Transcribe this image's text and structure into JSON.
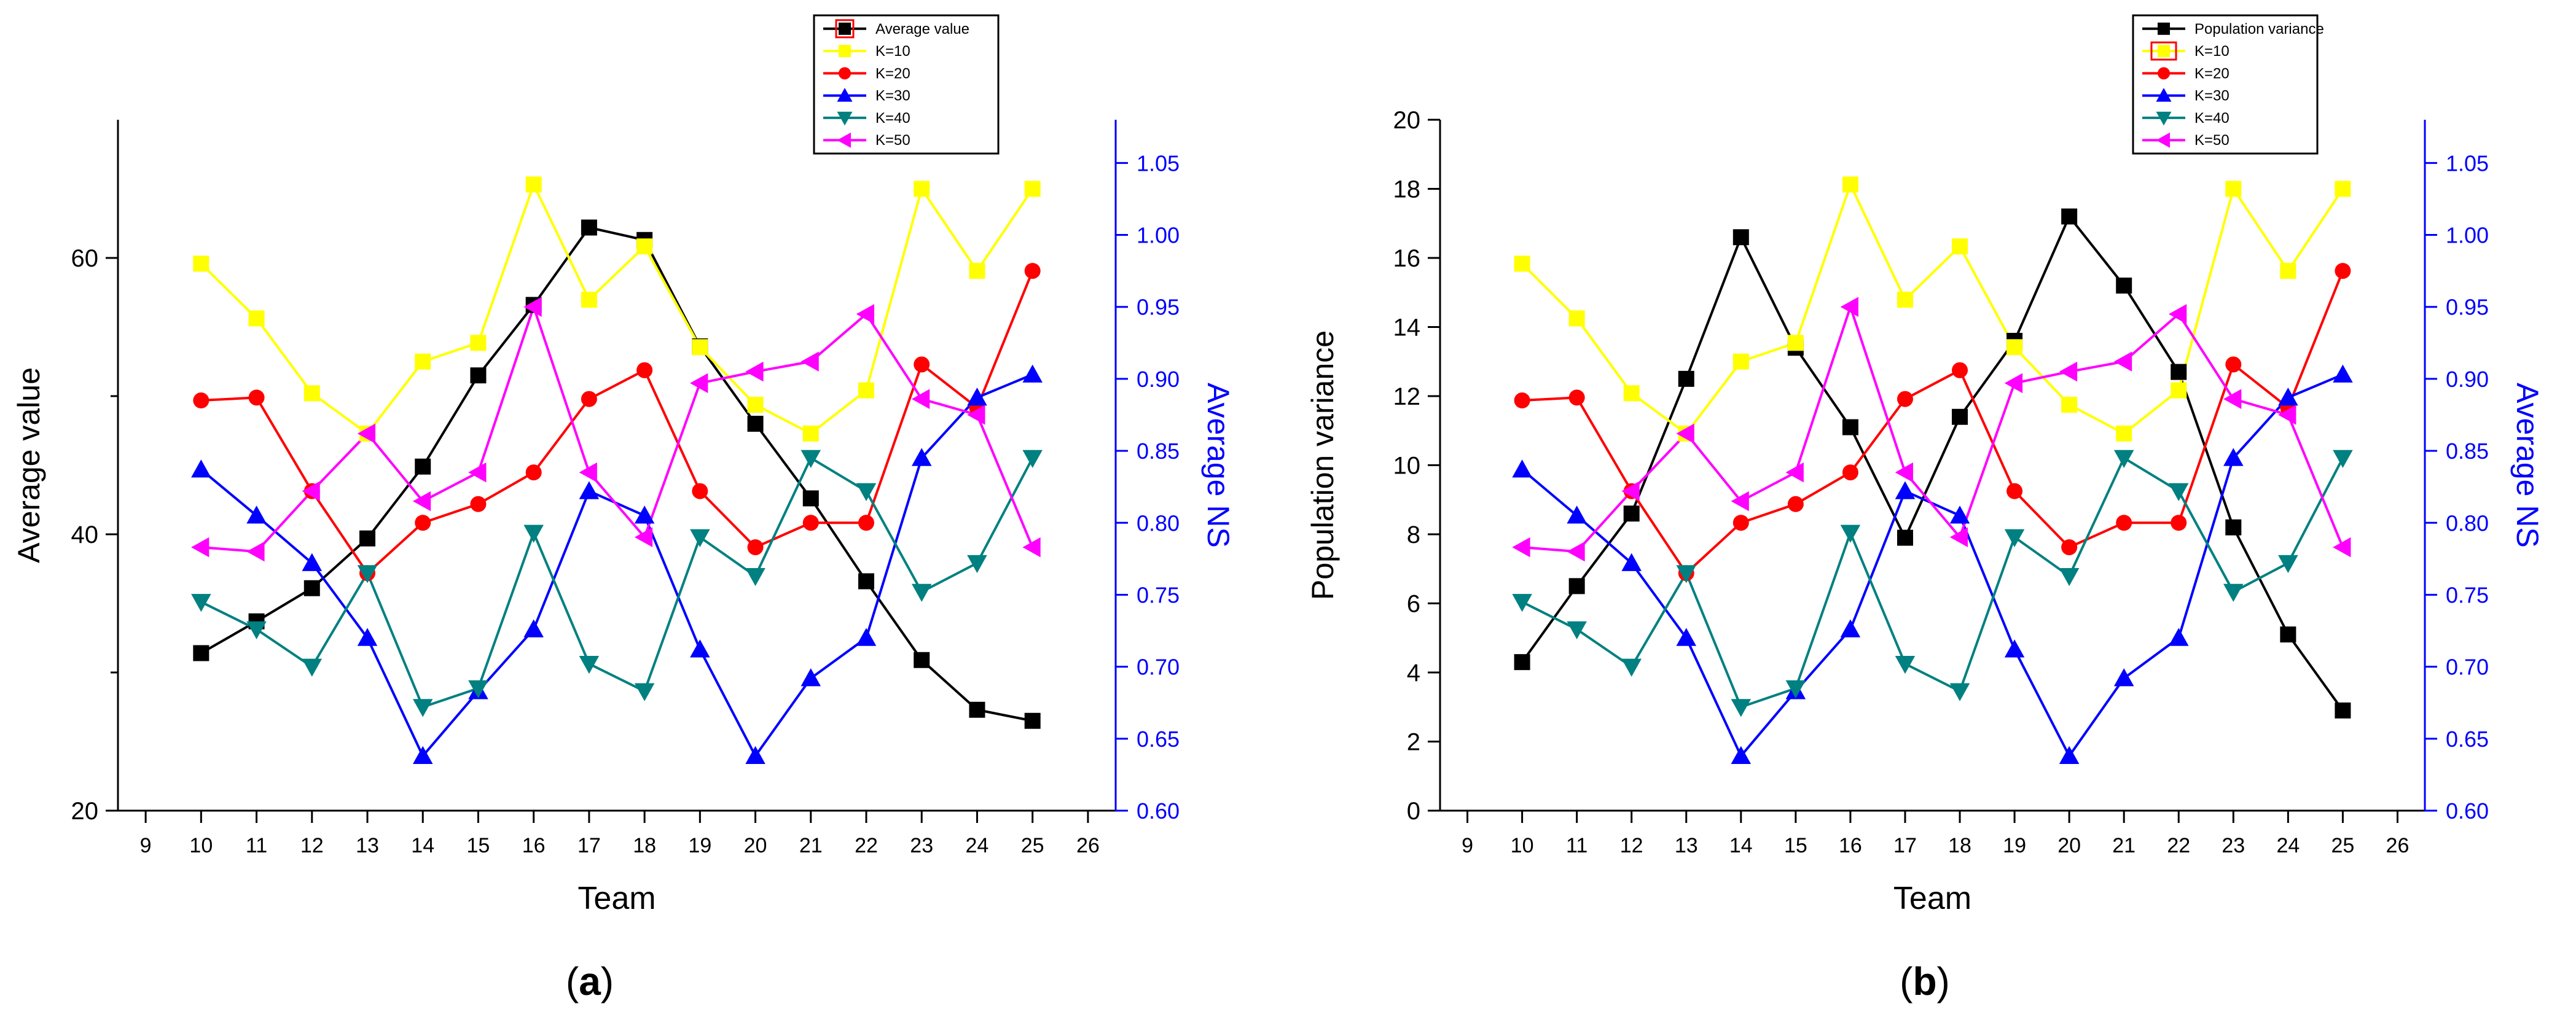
{
  "chart_data": [
    {
      "panel": "a",
      "caption_letter": "a",
      "type": "line",
      "xlabel": "Team",
      "ylabel": "Average value",
      "ylabel_right": "Average NS",
      "xlim": [
        8.5,
        26.5
      ],
      "ylim": [
        20,
        70
      ],
      "ylim_right": [
        0.6,
        1.08
      ],
      "xticks": [
        "9",
        "10",
        "11",
        "12",
        "13",
        "14",
        "15",
        "16",
        "17",
        "18",
        "19",
        "20",
        "21",
        "22",
        "23",
        "24",
        "25",
        "26"
      ],
      "yticks_left": [
        "20",
        "40",
        "60"
      ],
      "yticks_right": [
        "0.60",
        "0.65",
        "0.70",
        "0.75",
        "0.80",
        "0.85",
        "0.90",
        "0.95",
        "1.00",
        "1.05"
      ],
      "x": [
        10,
        11,
        12,
        13,
        14,
        15,
        16,
        17,
        18,
        19,
        20,
        21,
        22,
        23,
        24,
        25
      ],
      "legend_position": "top-right",
      "series": [
        {
          "name": "Average value",
          "axis": "left",
          "color": "#000000",
          "marker": "square",
          "values": [
            31.4,
            33.7,
            36.1,
            39.7,
            44.9,
            51.5,
            56.6,
            62.2,
            61.3,
            53.6,
            48.0,
            42.6,
            36.6,
            30.9,
            27.3,
            26.5
          ]
        },
        {
          "name": "K=10",
          "axis": "right",
          "color": "#ffff00",
          "marker": "square",
          "values": [
            0.98,
            0.942,
            0.89,
            0.862,
            0.912,
            0.925,
            1.035,
            0.955,
            0.992,
            0.922,
            0.882,
            0.862,
            0.892,
            1.032,
            0.975,
            1.032
          ]
        },
        {
          "name": "K=20",
          "axis": "right",
          "color": "#ff0000",
          "marker": "circle",
          "values": [
            0.885,
            0.887,
            0.822,
            0.765,
            0.8,
            0.813,
            0.835,
            0.886,
            0.906,
            0.822,
            0.783,
            0.8,
            0.8,
            0.91,
            0.88,
            0.975
          ]
        },
        {
          "name": "K=30",
          "axis": "right",
          "color": "#0000ff",
          "marker": "triangle-up",
          "values": [
            0.837,
            0.805,
            0.772,
            0.72,
            0.638,
            0.683,
            0.726,
            0.822,
            0.805,
            0.712,
            0.638,
            0.692,
            0.72,
            0.845,
            0.887,
            0.903
          ]
        },
        {
          "name": "K=40",
          "axis": "right",
          "color": "#008080",
          "marker": "triangle-down",
          "values": [
            0.745,
            0.726,
            0.7,
            0.765,
            0.672,
            0.685,
            0.793,
            0.702,
            0.683,
            0.79,
            0.763,
            0.845,
            0.822,
            0.752,
            0.772,
            0.845
          ]
        },
        {
          "name": "K=50",
          "axis": "right",
          "color": "#ff00ff",
          "marker": "triangle-left",
          "values": [
            0.783,
            0.78,
            0.822,
            0.862,
            0.815,
            0.835,
            0.95,
            0.835,
            0.79,
            0.897,
            0.905,
            0.912,
            0.945,
            0.886,
            0.875,
            0.783
          ]
        }
      ]
    },
    {
      "panel": "b",
      "caption_letter": "b",
      "type": "line",
      "xlabel": "Team",
      "ylabel": "Population variance",
      "ylabel_right": "Average NS",
      "xlim": [
        8.5,
        26.5
      ],
      "ylim": [
        0,
        20
      ],
      "ylim_right": [
        0.6,
        1.08
      ],
      "xticks": [
        "9",
        "10",
        "11",
        "12",
        "13",
        "14",
        "15",
        "16",
        "17",
        "18",
        "19",
        "20",
        "21",
        "22",
        "23",
        "24",
        "25",
        "26"
      ],
      "yticks_left": [
        "0",
        "2",
        "4",
        "6",
        "8",
        "10",
        "12",
        "14",
        "16",
        "18",
        "20"
      ],
      "yticks_right": [
        "0.60",
        "0.65",
        "0.70",
        "0.75",
        "0.80",
        "0.85",
        "0.90",
        "0.95",
        "1.00",
        "1.05"
      ],
      "x": [
        10,
        11,
        12,
        13,
        14,
        15,
        16,
        17,
        18,
        19,
        20,
        21,
        22,
        23,
        24,
        25
      ],
      "legend_position": "top-right",
      "series": [
        {
          "name": "Population variance",
          "axis": "left",
          "color": "#000000",
          "marker": "square",
          "values": [
            4.3,
            6.5,
            8.6,
            12.5,
            16.6,
            13.4,
            11.1,
            7.9,
            11.4,
            13.6,
            17.2,
            15.2,
            12.7,
            8.2,
            5.1,
            2.9
          ]
        },
        {
          "name": "K=10",
          "axis": "right",
          "color": "#ffff00",
          "marker": "square",
          "values": [
            0.98,
            0.942,
            0.89,
            0.862,
            0.912,
            0.925,
            1.035,
            0.955,
            0.992,
            0.922,
            0.882,
            0.862,
            0.892,
            1.032,
            0.975,
            1.032
          ]
        },
        {
          "name": "K=20",
          "axis": "right",
          "color": "#ff0000",
          "marker": "circle",
          "values": [
            0.885,
            0.887,
            0.822,
            0.765,
            0.8,
            0.813,
            0.835,
            0.886,
            0.906,
            0.822,
            0.783,
            0.8,
            0.8,
            0.91,
            0.88,
            0.975
          ]
        },
        {
          "name": "K=30",
          "axis": "right",
          "color": "#0000ff",
          "marker": "triangle-up",
          "values": [
            0.837,
            0.805,
            0.772,
            0.72,
            0.638,
            0.683,
            0.726,
            0.822,
            0.805,
            0.712,
            0.638,
            0.692,
            0.72,
            0.845,
            0.887,
            0.903
          ]
        },
        {
          "name": "K=40",
          "axis": "right",
          "color": "#008080",
          "marker": "triangle-down",
          "values": [
            0.745,
            0.726,
            0.7,
            0.765,
            0.672,
            0.685,
            0.793,
            0.702,
            0.683,
            0.79,
            0.763,
            0.845,
            0.822,
            0.752,
            0.772,
            0.845
          ]
        },
        {
          "name": "K=50",
          "axis": "right",
          "color": "#ff00ff",
          "marker": "triangle-left",
          "values": [
            0.783,
            0.78,
            0.822,
            0.862,
            0.815,
            0.835,
            0.95,
            0.835,
            0.79,
            0.897,
            0.905,
            0.912,
            0.945,
            0.886,
            0.875,
            0.783
          ]
        }
      ]
    }
  ],
  "colors": {
    "axis": "#000000",
    "right_axis": "#0000ff",
    "legend_highlight": "#ff0000"
  }
}
